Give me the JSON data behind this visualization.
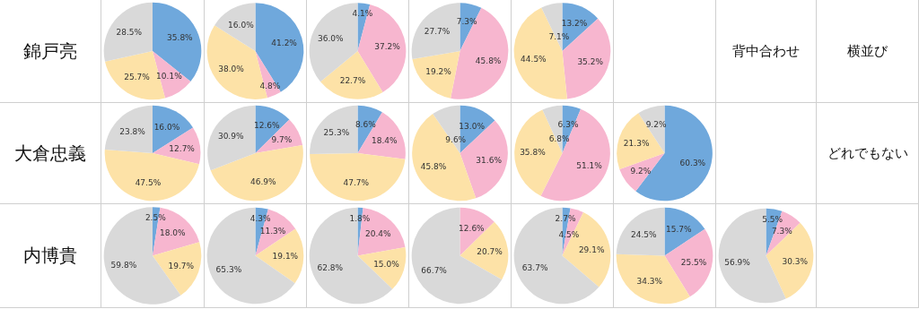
{
  "chart_data": [
    {
      "type": "other",
      "title": "錦戸亮"
    },
    {
      "type": "pie",
      "categories": [
        null,
        null,
        null,
        null
      ],
      "values": [
        35.8,
        10.1,
        25.7,
        28.5
      ],
      "value_labels": [
        "35.8%",
        "10.1%",
        "25.7%",
        "28.5%"
      ],
      "colors": [
        "#6fa8dc",
        "#f7b6cf",
        "#fde2a7",
        "#d9d9d9"
      ]
    },
    {
      "type": "pie",
      "categories": [
        null,
        null,
        null,
        null
      ],
      "values": [
        41.2,
        4.8,
        38.0,
        16.0
      ],
      "value_labels": [
        "41.2%",
        "4.8%",
        "38.0%",
        "16.0%"
      ],
      "colors": [
        "#6fa8dc",
        "#f7b6cf",
        "#fde2a7",
        "#d9d9d9"
      ]
    },
    {
      "type": "pie",
      "categories": [
        null,
        null,
        null,
        null
      ],
      "values": [
        4.1,
        37.2,
        22.7,
        36.0
      ],
      "value_labels": [
        "4.1%",
        "37.2%",
        "22.7%",
        "36.0%"
      ],
      "colors": [
        "#6fa8dc",
        "#f7b6cf",
        "#fde2a7",
        "#d9d9d9"
      ]
    },
    {
      "type": "pie",
      "categories": [
        null,
        null,
        null,
        null
      ],
      "values": [
        7.3,
        45.8,
        19.2,
        27.7
      ],
      "value_labels": [
        "7.3%",
        "45.8%",
        "19.2%",
        "27.7%"
      ],
      "colors": [
        "#6fa8dc",
        "#f7b6cf",
        "#fde2a7",
        "#d9d9d9"
      ]
    },
    {
      "type": "pie",
      "categories": [
        null,
        null,
        null,
        null
      ],
      "values": [
        13.2,
        35.2,
        44.5,
        7.1
      ],
      "value_labels": [
        "13.2%",
        "35.2%",
        "44.5%",
        "7.1%"
      ],
      "colors": [
        "#6fa8dc",
        "#f7b6cf",
        "#fde2a7",
        "#d9d9d9"
      ]
    },
    {
      "type": "other",
      "title": "背中合わせ"
    },
    {
      "type": "other",
      "title": "横並び"
    },
    {
      "type": "other",
      "title": "大倉忠義"
    },
    {
      "type": "pie",
      "categories": [
        null,
        null,
        null,
        null
      ],
      "values": [
        16.0,
        12.7,
        47.5,
        23.8
      ],
      "value_labels": [
        "16.0%",
        "12.7%",
        "47.5%",
        "23.8%"
      ],
      "colors": [
        "#6fa8dc",
        "#f7b6cf",
        "#fde2a7",
        "#d9d9d9"
      ]
    },
    {
      "type": "pie",
      "categories": [
        null,
        null,
        null,
        null
      ],
      "values": [
        12.6,
        9.7,
        46.9,
        30.9
      ],
      "value_labels": [
        "12.6%",
        "9.7%",
        "46.9%",
        "30.9%"
      ],
      "colors": [
        "#6fa8dc",
        "#f7b6cf",
        "#fde2a7",
        "#d9d9d9"
      ]
    },
    {
      "type": "pie",
      "categories": [
        null,
        null,
        null,
        null
      ],
      "values": [
        8.6,
        18.4,
        47.7,
        25.3
      ],
      "value_labels": [
        "8.6%",
        "18.4%",
        "47.7%",
        "25.3%"
      ],
      "colors": [
        "#6fa8dc",
        "#f7b6cf",
        "#fde2a7",
        "#d9d9d9"
      ]
    },
    {
      "type": "pie",
      "categories": [
        null,
        null,
        null,
        null
      ],
      "values": [
        13.0,
        31.6,
        45.8,
        9.6
      ],
      "value_labels": [
        "13.0%",
        "31.6%",
        "45.8%",
        "9.6%"
      ],
      "colors": [
        "#6fa8dc",
        "#f7b6cf",
        "#fde2a7",
        "#d9d9d9"
      ]
    },
    {
      "type": "pie",
      "categories": [
        null,
        null,
        null,
        null
      ],
      "values": [
        6.3,
        51.1,
        35.8,
        6.8
      ],
      "value_labels": [
        "6.3%",
        "51.1%",
        "35.8%",
        "6.8%"
      ],
      "colors": [
        "#6fa8dc",
        "#f7b6cf",
        "#fde2a7",
        "#d9d9d9"
      ]
    },
    {
      "type": "pie",
      "categories": [
        null,
        null,
        null,
        null
      ],
      "values": [
        60.3,
        9.2,
        21.3,
        9.2
      ],
      "value_labels": [
        "60.3%",
        "9.2%",
        "21.3%",
        "9.2%"
      ],
      "colors": [
        "#6fa8dc",
        "#f7b6cf",
        "#fde2a7",
        "#d9d9d9"
      ]
    },
    {
      "type": "other",
      "title": "どれでもない"
    },
    {
      "type": "other",
      "title": "内博貴"
    },
    {
      "type": "pie",
      "categories": [
        null,
        null,
        null,
        null
      ],
      "values": [
        2.5,
        18.0,
        19.7,
        59.8
      ],
      "value_labels": [
        "2.5%",
        "18.0%",
        "19.7%",
        "59.8%"
      ],
      "colors": [
        "#6fa8dc",
        "#f7b6cf",
        "#fde2a7",
        "#d9d9d9"
      ]
    },
    {
      "type": "pie",
      "categories": [
        null,
        null,
        null,
        null
      ],
      "values": [
        4.3,
        11.3,
        19.1,
        65.3
      ],
      "value_labels": [
        "4.3%",
        "11.3%",
        "19.1%",
        "65.3%"
      ],
      "colors": [
        "#6fa8dc",
        "#f7b6cf",
        "#fde2a7",
        "#d9d9d9"
      ]
    },
    {
      "type": "pie",
      "categories": [
        null,
        null,
        null,
        null
      ],
      "values": [
        1.8,
        20.4,
        15.0,
        62.8
      ],
      "value_labels": [
        "1.8%",
        "20.4%",
        "15.0%",
        "62.8%"
      ],
      "colors": [
        "#6fa8dc",
        "#f7b6cf",
        "#fde2a7",
        "#d9d9d9"
      ]
    },
    {
      "type": "pie",
      "categories": [
        null,
        null,
        null
      ],
      "values": [
        12.6,
        20.7,
        66.7
      ],
      "value_labels": [
        "12.6%",
        "20.7%",
        "66.7%"
      ],
      "colors": [
        "#f7b6cf",
        "#fde2a7",
        "#d9d9d9"
      ]
    },
    {
      "type": "pie",
      "categories": [
        null,
        null,
        null,
        null
      ],
      "values": [
        2.7,
        4.5,
        29.1,
        63.7
      ],
      "value_labels": [
        "2.7%",
        "4.5%",
        "29.1%",
        "63.7%"
      ],
      "colors": [
        "#6fa8dc",
        "#f7b6cf",
        "#fde2a7",
        "#d9d9d9"
      ]
    },
    {
      "type": "pie",
      "categories": [
        null,
        null,
        null,
        null
      ],
      "values": [
        15.7,
        25.5,
        34.3,
        24.5
      ],
      "value_labels": [
        "15.7%",
        "25.5%",
        "34.3%",
        "24.5%"
      ],
      "colors": [
        "#6fa8dc",
        "#f7b6cf",
        "#fde2a7",
        "#d9d9d9"
      ]
    },
    {
      "type": "pie",
      "categories": [
        null,
        null,
        null,
        null
      ],
      "values": [
        5.5,
        7.3,
        30.3,
        56.9
      ],
      "value_labels": [
        "5.5%",
        "7.3%",
        "30.3%",
        "56.9%"
      ],
      "colors": [
        "#6fa8dc",
        "#f7b6cf",
        "#fde2a7",
        "#d9d9d9"
      ]
    }
  ]
}
